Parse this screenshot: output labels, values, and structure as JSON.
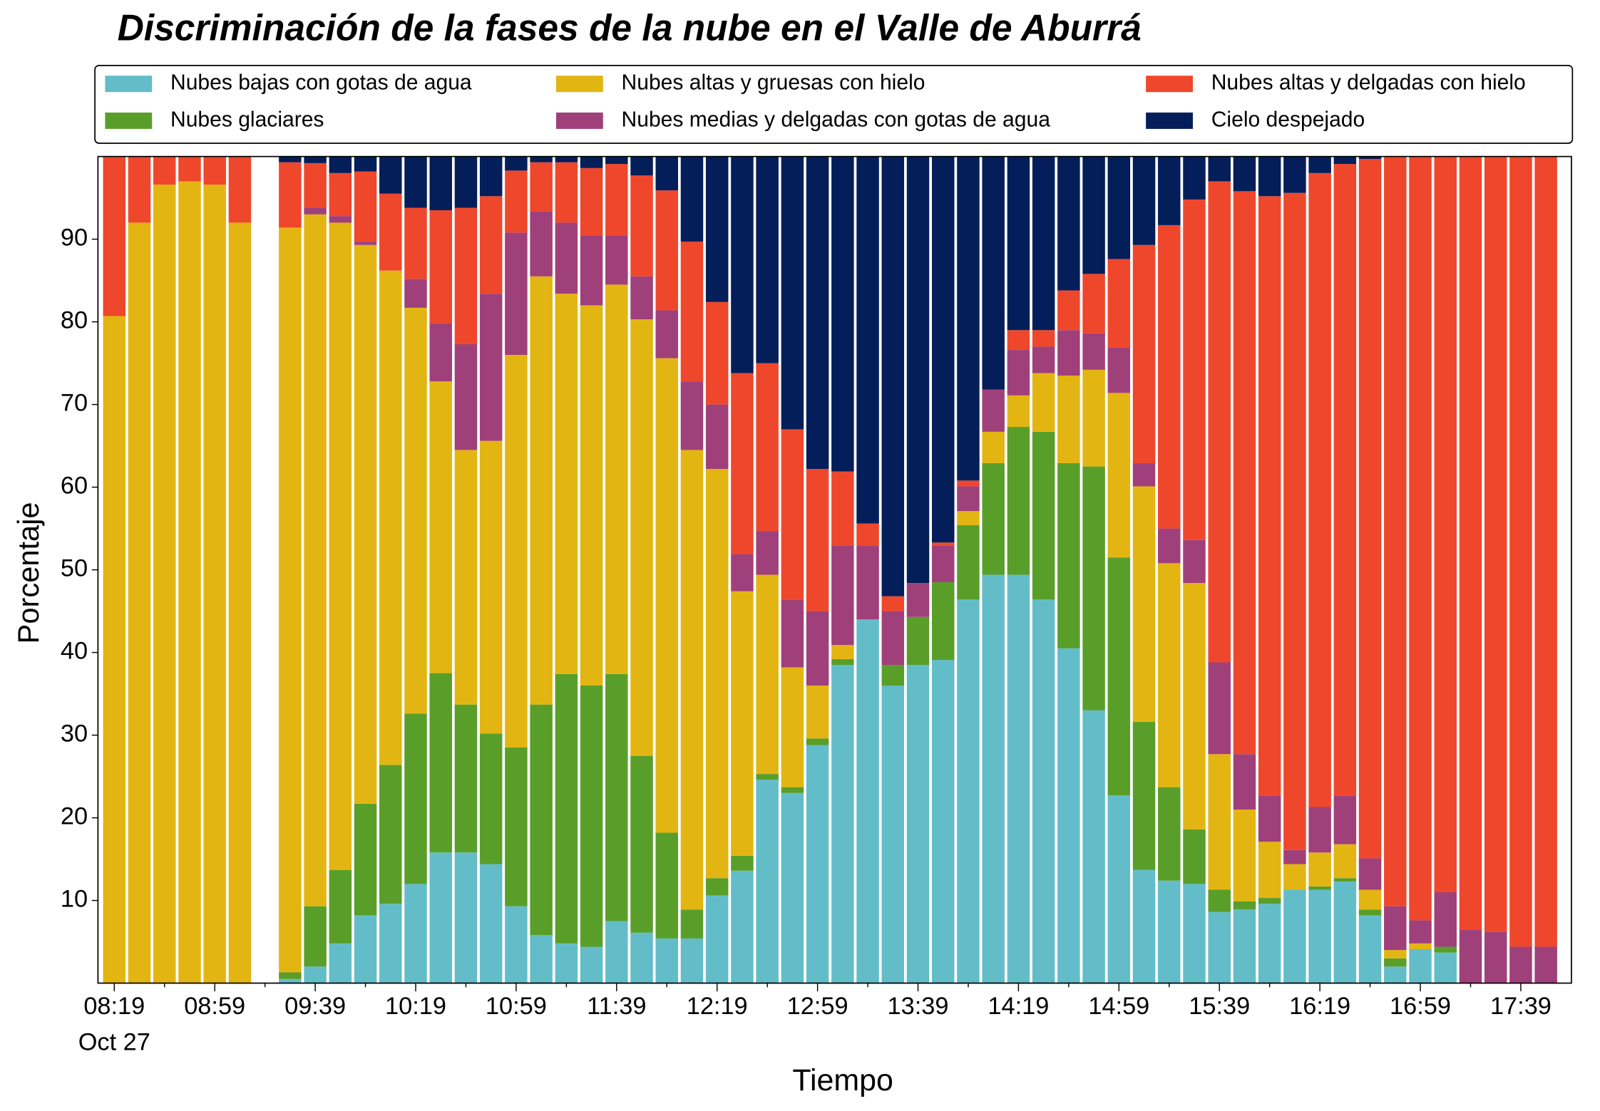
{
  "chart_data": {
    "type": "stacked_bar",
    "title": "Discriminación de la fases de la nube en el Valle de Aburrá",
    "xlabel": "Tiempo",
    "xlabel_date": "Oct 27",
    "ylabel": "Porcentaje",
    "legend_loc": "top",
    "categories": [
      "08:19",
      null,
      null,
      null,
      "08:59",
      null,
      null,
      null,
      "09:39",
      null,
      null,
      null,
      "10:19",
      null,
      null,
      null,
      "10:59",
      null,
      null,
      null,
      "11:39",
      null,
      null,
      null,
      "12:19",
      null,
      null,
      null,
      "12:59",
      null,
      null,
      null,
      "13:39",
      null,
      null,
      null,
      "14:19",
      null,
      null,
      null,
      "14:59",
      null,
      null,
      null,
      "15:39",
      null,
      null,
      null,
      "16:19",
      null,
      null,
      null,
      "16:59",
      null,
      null,
      null,
      "17:39",
      null
    ],
    "ylim": [
      0,
      100
    ],
    "yticks": [
      10,
      20,
      30,
      40,
      50,
      60,
      70,
      80,
      90
    ],
    "series": [
      {
        "name": "Nubes bajas con gotas de agua",
        "color": "#63bdc9",
        "values": [
          0,
          0,
          0,
          0,
          0,
          0,
          null,
          0.5,
          2,
          4.8,
          8.2,
          9.6,
          12,
          15.8,
          15.8,
          14.4,
          9.3,
          5.8,
          4.8,
          4.4,
          7.5,
          6.1,
          5.4,
          5.4,
          10.6,
          13.6,
          24.6,
          23,
          28.8,
          38.5,
          44,
          36,
          38.5,
          39.1,
          46.4,
          49.4,
          49.4,
          46.4,
          40.5,
          33,
          22.7,
          13.7,
          12.4,
          12,
          8.6,
          8.9,
          9.6,
          11.3,
          11.3,
          12.3,
          8.2,
          2,
          4.1,
          3.7,
          0,
          0,
          0,
          0
        ]
      },
      {
        "name": "Nubes glaciares",
        "color": "#5a9e2a",
        "values": [
          0,
          0,
          0,
          0,
          0,
          0,
          null,
          0.8,
          7.3,
          8.9,
          13.5,
          16.8,
          20.6,
          21.7,
          17.9,
          15.8,
          19.2,
          27.9,
          32.6,
          31.6,
          29.9,
          21.4,
          12.8,
          3.5,
          2.1,
          1.8,
          0.7,
          0.7,
          0.8,
          0.7,
          0,
          2.5,
          5.8,
          9.4,
          9,
          13.5,
          17.9,
          20.3,
          22.4,
          29.5,
          28.8,
          17.9,
          11.3,
          6.6,
          2.7,
          1,
          0.7,
          0,
          0.4,
          0.4,
          0.7,
          1,
          0,
          0.7,
          0,
          0,
          0,
          0
        ]
      },
      {
        "name": "Nubes altas y gruesas con hielo",
        "color": "#e3b512",
        "values": [
          80.7,
          92,
          96.6,
          97,
          96.6,
          92,
          null,
          90.1,
          83.7,
          78.3,
          67.6,
          59.8,
          49.1,
          35.3,
          30.8,
          35.4,
          47.5,
          51.8,
          46,
          46,
          47.1,
          52.8,
          57.4,
          55.6,
          49.5,
          32,
          24.1,
          14.5,
          6.4,
          1.7,
          0,
          0,
          0,
          0,
          1.7,
          3.8,
          3.8,
          7.1,
          10.6,
          11.7,
          19.9,
          28.5,
          27.1,
          29.8,
          16.4,
          11.1,
          6.8,
          3.1,
          4.1,
          4.1,
          2.4,
          1,
          0.7,
          0,
          0,
          0,
          0,
          0
        ]
      },
      {
        "name": "Nubes medias y delgadas con gotas de agua",
        "color": "#a0407a",
        "values": [
          0,
          0,
          0,
          0,
          0,
          0,
          null,
          0,
          0.8,
          0.8,
          0.4,
          0,
          3.5,
          7,
          12.8,
          17.8,
          14.8,
          7.9,
          8.6,
          8.4,
          5.9,
          5.2,
          5.8,
          8.3,
          7.8,
          4.5,
          5.3,
          8.2,
          9,
          12,
          8.9,
          6.5,
          4.1,
          4.4,
          3,
          5.1,
          5.5,
          3.2,
          5.5,
          4.4,
          5.5,
          2.8,
          4.2,
          5.2,
          11.1,
          6.7,
          5.6,
          1.7,
          5.5,
          5.9,
          3.8,
          5.3,
          2.8,
          6.6,
          6.5,
          6.2,
          4.4,
          4.4
        ]
      },
      {
        "name": "Nubes altas y delgadas con hielo",
        "color": "#ef472c",
        "values": [
          19.3,
          8,
          3.4,
          3,
          3.4,
          8,
          null,
          7.9,
          5.4,
          5.2,
          8.5,
          9.3,
          8.6,
          13.7,
          16.5,
          11.8,
          7.5,
          5.9,
          7.3,
          8.2,
          8.7,
          12.2,
          14.5,
          16.9,
          12.4,
          21.9,
          20.3,
          20.6,
          17.2,
          9,
          2.7,
          1.8,
          0,
          0.4,
          0.7,
          0,
          2.4,
          2,
          4.8,
          7.2,
          10.7,
          26.4,
          36.7,
          41.2,
          58.2,
          68.1,
          72.5,
          79.5,
          76.7,
          76.4,
          84.6,
          90.7,
          92.4,
          89,
          93.5,
          93.8,
          95.6,
          95.6
        ]
      },
      {
        "name": "Cielo despejado",
        "color": "#041e5a",
        "values": [
          0,
          0,
          0,
          0,
          0,
          0,
          null,
          0.7,
          0.8,
          2,
          1.8,
          4.5,
          6.2,
          6.5,
          6.2,
          4.8,
          1.7,
          0.7,
          0.7,
          1.4,
          0.9,
          2.3,
          4.1,
          10.3,
          17.6,
          26.2,
          25,
          33,
          37.8,
          38.1,
          44.4,
          53.2,
          51.6,
          46.7,
          39.2,
          28.2,
          21,
          21,
          16.2,
          14.2,
          12.4,
          10.7,
          8.3,
          5.2,
          3,
          4.2,
          4.8,
          4.4,
          2,
          0.9,
          0.3,
          0,
          0,
          0,
          0,
          0,
          0,
          0
        ]
      }
    ]
  }
}
